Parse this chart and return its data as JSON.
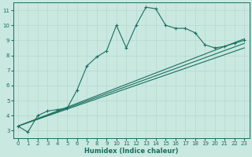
{
  "xlabel": "Humidex (Indice chaleur)",
  "xlim": [
    -0.5,
    23.5
  ],
  "ylim": [
    2.5,
    11.5
  ],
  "xticks": [
    0,
    1,
    2,
    3,
    4,
    5,
    6,
    7,
    8,
    9,
    10,
    11,
    12,
    13,
    14,
    15,
    16,
    17,
    18,
    19,
    20,
    21,
    22,
    23
  ],
  "yticks": [
    3,
    4,
    5,
    6,
    7,
    8,
    9,
    10,
    11
  ],
  "bg_color": "#c8e8e0",
  "line_color": "#1a7060",
  "grid_color": "#b8d8d0",
  "line1_x": [
    0,
    1,
    2,
    3,
    4,
    5,
    6,
    7,
    8,
    9,
    10,
    11,
    12,
    13,
    14,
    15,
    16,
    17,
    18,
    19,
    20,
    21,
    22,
    23
  ],
  "line1_y": [
    3.3,
    2.9,
    4.0,
    4.3,
    4.4,
    4.5,
    5.7,
    7.3,
    7.9,
    8.3,
    10.0,
    8.5,
    10.0,
    11.2,
    11.1,
    10.0,
    9.8,
    9.8,
    9.5,
    8.7,
    8.5,
    8.6,
    8.8,
    9.0
  ],
  "line2_x": [
    0,
    23
  ],
  "line2_y": [
    3.3,
    9.1
  ],
  "line3_x": [
    0,
    23
  ],
  "line3_y": [
    3.3,
    8.8
  ],
  "line4_x": [
    0,
    23
  ],
  "line4_y": [
    3.3,
    8.5
  ]
}
